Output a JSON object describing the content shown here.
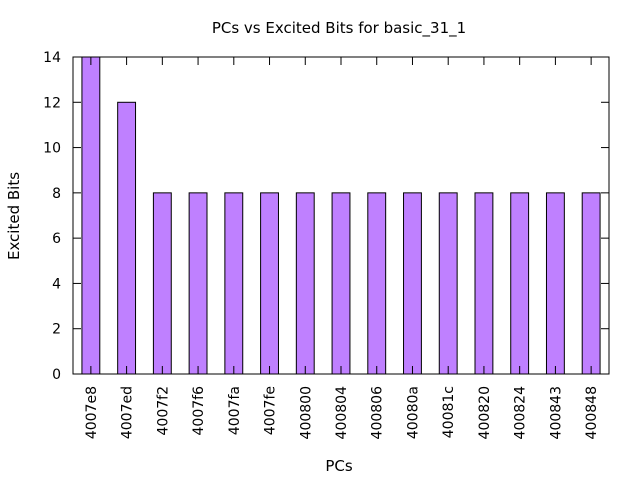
{
  "chart_data": {
    "type": "bar",
    "title": "PCs vs Excited Bits for basic_31_1",
    "xlabel": "PCs",
    "ylabel": "Excited Bits",
    "ylim": [
      0,
      14
    ],
    "yticks": [
      0,
      2,
      4,
      6,
      8,
      10,
      12,
      14
    ],
    "categories": [
      "4007e8",
      "4007ed",
      "4007f2",
      "4007f6",
      "4007fa",
      "4007fe",
      "400800",
      "400804",
      "400806",
      "40080a",
      "40081c",
      "400820",
      "400824",
      "400843",
      "400848"
    ],
    "values": [
      14,
      12,
      8,
      8,
      8,
      8,
      8,
      8,
      8,
      8,
      8,
      8,
      8,
      8,
      8
    ],
    "grid": false,
    "bar_color": "#bf80ff",
    "bar_edge_color": "#000000"
  }
}
